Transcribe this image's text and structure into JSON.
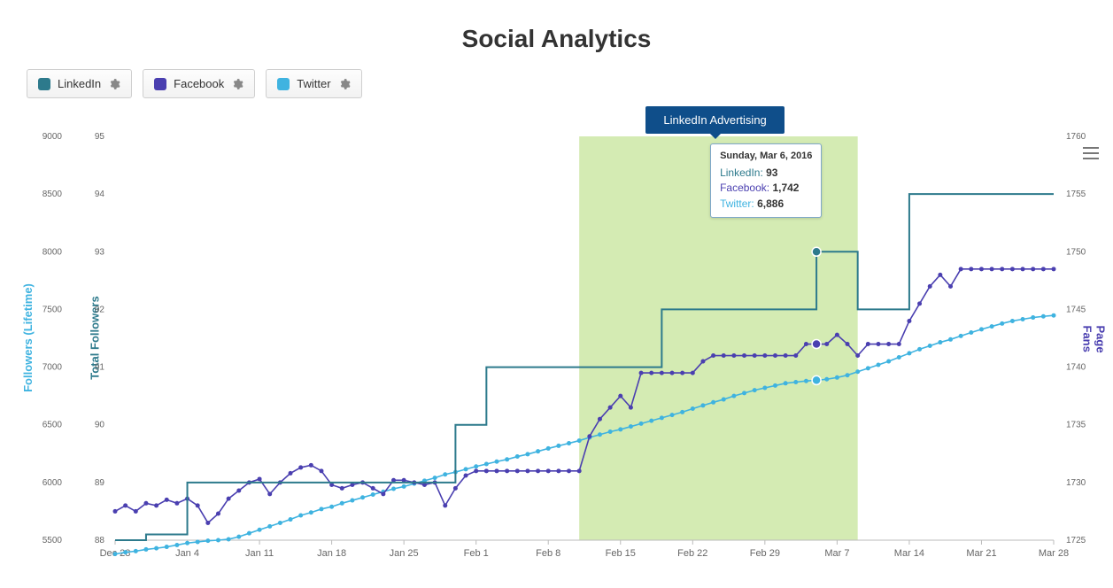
{
  "title": "Social Analytics",
  "legend": {
    "linkedin": {
      "label": "LinkedIn",
      "color": "#2d7a8c"
    },
    "facebook": {
      "label": "Facebook",
      "color": "#4a3fb0"
    },
    "twitter": {
      "label": "Twitter",
      "color": "#3fb3e0"
    }
  },
  "annotation": {
    "label": "LinkedIn Advertising",
    "bg": "#0f4e8a",
    "text_color": "#ffffff"
  },
  "plot_band": {
    "from": "2016-02-11",
    "to": "2016-03-10",
    "color": "#cce8a6",
    "opacity": 0.85
  },
  "x_axis": {
    "ticks": [
      "Dec 28",
      "Jan 4",
      "Jan 11",
      "Jan 18",
      "Jan 25",
      "Feb 1",
      "Feb 8",
      "Feb 15",
      "Feb 22",
      "Feb 29",
      "Mar 7",
      "Mar 14",
      "Mar 21",
      "Mar 28"
    ],
    "label_color": "#666666",
    "font_size": 11
  },
  "y_axes": {
    "twitter_followers": {
      "title": "Followers (Lifetime)",
      "color": "#3fb3e0",
      "ticks": [
        5500,
        6000,
        6500,
        7000,
        7500,
        8000,
        8500,
        9000
      ]
    },
    "linkedin_total": {
      "title": "Total Followers",
      "color": "#2d7a8c",
      "ticks": [
        88,
        89,
        90,
        91,
        92,
        93,
        94,
        95
      ]
    },
    "facebook_fans": {
      "title": "Page Fans",
      "color": "#4a3fb0",
      "ticks": [
        1725,
        1730,
        1735,
        1740,
        1745,
        1750,
        1755,
        1760
      ]
    }
  },
  "chart": {
    "type": "line",
    "background": "#ffffff",
    "grid_color": "#e6e6e6",
    "line_width_linkedin": 2.0,
    "line_width_facebook": 1.6,
    "line_width_twitter": 1.6,
    "marker_radius": 2.5,
    "highlight_marker_radius": 5,
    "highlight_date": "2016-03-06",
    "n_points": 92
  },
  "series": {
    "linkedin": {
      "color": "#2d7a8c",
      "markers": false,
      "step": true,
      "y": [
        88.0,
        88.0,
        88.0,
        88.1,
        88.1,
        88.1,
        88.1,
        89.0,
        89.0,
        89.0,
        89.0,
        89.0,
        89.0,
        89.0,
        89.0,
        89.0,
        89.0,
        89.0,
        89.0,
        89.0,
        89.0,
        89.0,
        89.0,
        89.0,
        89.0,
        89.0,
        89.0,
        89.0,
        89.0,
        89.0,
        89.0,
        89.0,
        89.0,
        90.0,
        90.0,
        90.0,
        91.0,
        91.0,
        91.0,
        91.0,
        91.0,
        91.0,
        91.0,
        91.0,
        91.0,
        91.0,
        91.0,
        91.0,
        91.0,
        91.0,
        91.0,
        91.0,
        91.0,
        92.0,
        92.0,
        92.0,
        92.0,
        92.0,
        92.0,
        92.0,
        92.0,
        92.0,
        92.0,
        92.0,
        92.0,
        92.0,
        92.0,
        92.0,
        93.0,
        93.0,
        93.0,
        93.0,
        92.0,
        92.0,
        92.0,
        92.0,
        92.0,
        94.0,
        94.0,
        94.0,
        94.0,
        94.0,
        94.0,
        94.0,
        94.0,
        94.0,
        94.0,
        94.0,
        94.0,
        94.0,
        94.0,
        94.0
      ]
    },
    "facebook": {
      "color": "#4a3fb0",
      "markers": true,
      "y": [
        1727.5,
        1728.0,
        1727.5,
        1728.2,
        1728.0,
        1728.5,
        1728.2,
        1728.6,
        1728.0,
        1726.5,
        1727.3,
        1728.6,
        1729.3,
        1730.0,
        1730.3,
        1729.0,
        1730.0,
        1730.8,
        1731.3,
        1731.5,
        1731.0,
        1729.8,
        1729.5,
        1729.8,
        1730.0,
        1729.5,
        1729.0,
        1730.2,
        1730.2,
        1730.0,
        1729.8,
        1730.0,
        1728.0,
        1729.5,
        1730.6,
        1731.0,
        1731.0,
        1731.0,
        1731.0,
        1731.0,
        1731.0,
        1731.0,
        1731.0,
        1731.0,
        1731.0,
        1731.0,
        1734.0,
        1735.5,
        1736.5,
        1737.5,
        1736.5,
        1739.5,
        1739.5,
        1739.5,
        1739.5,
        1739.5,
        1739.5,
        1740.5,
        1741.0,
        1741.0,
        1741.0,
        1741.0,
        1741.0,
        1741.0,
        1741.0,
        1741.0,
        1741.0,
        1742.0,
        1742.0,
        1742.0,
        1742.8,
        1742.0,
        1741.0,
        1742.0,
        1742.0,
        1742.0,
        1742.0,
        1744.0,
        1745.5,
        1747.0,
        1748.0,
        1747.0,
        1748.5,
        1748.5,
        1748.5,
        1748.5,
        1748.5,
        1748.5,
        1748.5,
        1748.5,
        1748.5,
        1748.5
      ]
    },
    "twitter": {
      "color": "#3fb3e0",
      "markers": true,
      "y": [
        5380,
        5395,
        5405,
        5420,
        5430,
        5442,
        5458,
        5475,
        5485,
        5495,
        5500,
        5508,
        5530,
        5560,
        5590,
        5620,
        5650,
        5680,
        5715,
        5740,
        5770,
        5790,
        5820,
        5845,
        5870,
        5895,
        5920,
        5945,
        5965,
        5990,
        6015,
        6040,
        6070,
        6090,
        6115,
        6139,
        6160,
        6181,
        6200,
        6225,
        6245,
        6270,
        6295,
        6318,
        6340,
        6363,
        6390,
        6415,
        6440,
        6460,
        6485,
        6510,
        6535,
        6560,
        6585,
        6610,
        6640,
        6668,
        6695,
        6720,
        6750,
        6775,
        6800,
        6820,
        6840,
        6860,
        6870,
        6880,
        6886,
        6895,
        6910,
        6930,
        6960,
        6990,
        7020,
        7050,
        7085,
        7120,
        7155,
        7185,
        7215,
        7240,
        7270,
        7300,
        7328,
        7353,
        7378,
        7400,
        7415,
        7430,
        7440,
        7448
      ]
    }
  },
  "tooltip": {
    "header": "Sunday, Mar 6, 2016",
    "rows": [
      {
        "label": "LinkedIn",
        "color": "#2d7a8c",
        "value": "93"
      },
      {
        "label": "Facebook",
        "color": "#4a3fb0",
        "value": "1,742"
      },
      {
        "label": "Twitter",
        "color": "#3fb3e0",
        "value": "6,886"
      }
    ]
  },
  "gear_icon_color": "#888888",
  "burger_icon_color": "#777777"
}
